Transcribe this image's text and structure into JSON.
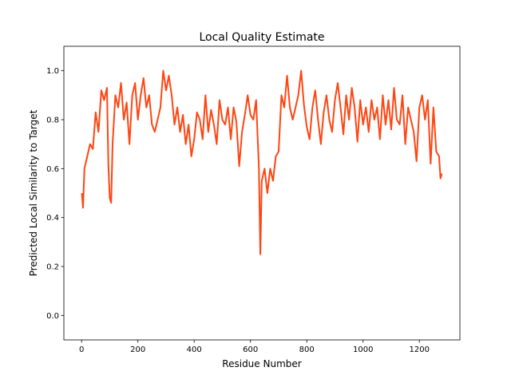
{
  "chart_data": {
    "type": "line",
    "title": "Local Quality Estimate",
    "x_label": "Residue Number",
    "y_label": "Predicted Local Similarity to Target",
    "color": "#ff4512",
    "x": [
      1,
      5,
      10,
      20,
      30,
      40,
      50,
      60,
      70,
      80,
      90,
      95,
      100,
      105,
      110,
      120,
      130,
      140,
      150,
      160,
      170,
      180,
      190,
      200,
      210,
      220,
      230,
      240,
      250,
      260,
      270,
      280,
      290,
      300,
      310,
      320,
      330,
      340,
      350,
      360,
      370,
      380,
      390,
      400,
      410,
      420,
      430,
      440,
      450,
      460,
      470,
      480,
      490,
      500,
      510,
      520,
      530,
      540,
      550,
      560,
      570,
      580,
      590,
      600,
      610,
      620,
      630,
      635,
      640,
      650,
      660,
      670,
      680,
      690,
      700,
      710,
      720,
      730,
      740,
      750,
      760,
      770,
      780,
      790,
      800,
      810,
      820,
      830,
      840,
      850,
      860,
      870,
      880,
      890,
      900,
      910,
      920,
      930,
      940,
      950,
      960,
      970,
      980,
      990,
      1000,
      1010,
      1020,
      1030,
      1040,
      1050,
      1060,
      1070,
      1080,
      1090,
      1100,
      1110,
      1120,
      1130,
      1140,
      1150,
      1160,
      1170,
      1180,
      1190,
      1200,
      1210,
      1220,
      1230,
      1240,
      1250,
      1260,
      1270,
      1275,
      1280
    ],
    "values": [
      0.5,
      0.44,
      0.6,
      0.65,
      0.7,
      0.68,
      0.83,
      0.75,
      0.92,
      0.88,
      0.93,
      0.62,
      0.48,
      0.46,
      0.7,
      0.9,
      0.85,
      0.95,
      0.8,
      0.87,
      0.7,
      0.9,
      0.95,
      0.8,
      0.9,
      0.97,
      0.85,
      0.9,
      0.78,
      0.75,
      0.8,
      0.85,
      1.0,
      0.92,
      0.98,
      0.9,
      0.78,
      0.85,
      0.75,
      0.82,
      0.7,
      0.78,
      0.65,
      0.72,
      0.83,
      0.8,
      0.72,
      0.9,
      0.75,
      0.84,
      0.78,
      0.7,
      0.88,
      0.8,
      0.78,
      0.85,
      0.72,
      0.85,
      0.79,
      0.61,
      0.75,
      0.82,
      0.9,
      0.82,
      0.8,
      0.88,
      0.6,
      0.25,
      0.55,
      0.6,
      0.5,
      0.6,
      0.55,
      0.65,
      0.67,
      0.9,
      0.85,
      0.98,
      0.85,
      0.8,
      0.85,
      0.9,
      1.0,
      0.86,
      0.77,
      0.72,
      0.85,
      0.92,
      0.8,
      0.7,
      0.83,
      0.9,
      0.8,
      0.75,
      0.88,
      0.95,
      0.85,
      0.74,
      0.9,
      0.8,
      0.93,
      0.85,
      0.71,
      0.88,
      0.78,
      0.85,
      0.75,
      0.88,
      0.8,
      0.85,
      0.72,
      0.9,
      0.78,
      0.88,
      0.76,
      0.93,
      0.8,
      0.78,
      0.9,
      0.7,
      0.85,
      0.8,
      0.75,
      0.63,
      0.85,
      0.9,
      0.8,
      0.88,
      0.62,
      0.85,
      0.67,
      0.65,
      0.56,
      0.58
    ],
    "xlim": [
      -63,
      1344
    ],
    "ylim": [
      -0.1,
      1.1
    ],
    "xticks": [
      0,
      200,
      400,
      600,
      800,
      1000,
      1200
    ],
    "yticks": [
      {
        "value": 0,
        "label": "0.0"
      },
      0.2,
      0.4,
      0.6,
      0.8,
      {
        "value": 1,
        "label": "1.0"
      }
    ]
  }
}
